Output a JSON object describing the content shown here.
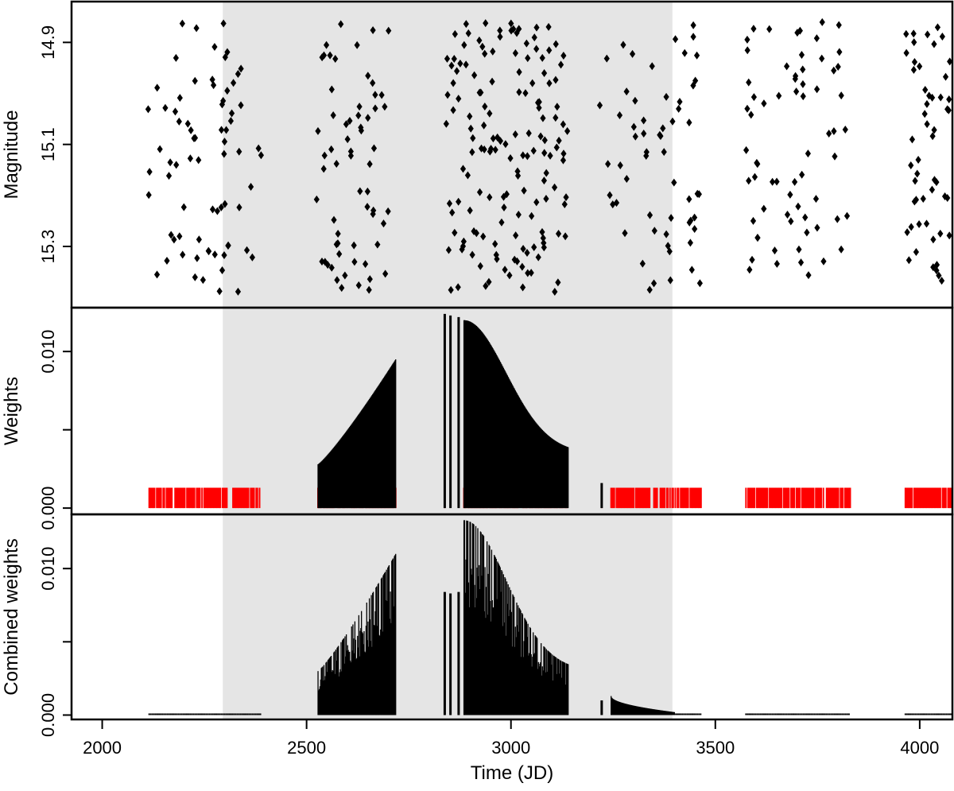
{
  "chart_data": {
    "type": "scatter",
    "x_axis": {
      "label": "Time (JD)",
      "range": [
        1925,
        4080
      ],
      "ticks": [
        2000,
        2500,
        3000,
        3500,
        4000
      ],
      "tick_labels": [
        "2000",
        "2500",
        "3000",
        "3500",
        "4000"
      ]
    },
    "highlight_band": {
      "x_range": [
        2295,
        3395
      ],
      "color": "#e5e5e5"
    },
    "colors": {
      "points": "#000000",
      "weights": "#000000",
      "observation_marks": "#ff0000",
      "band": "#e5e5e5"
    },
    "panels": [
      {
        "id": "magnitude",
        "ylabel": "Magnitude",
        "y_reversed": true,
        "ylim": [
          14.82,
          15.42
        ],
        "yticks": [
          14.9,
          15.1,
          15.3
        ],
        "ytick_labels": [
          "14.9",
          "15.1",
          "15.3"
        ],
        "marker": "diamond",
        "seasons": [
          {
            "x_range": [
              2110,
              2390
            ],
            "count": 72
          },
          {
            "x_range": [
              2520,
              2705
            ],
            "count": 62
          },
          {
            "x_range": [
              2840,
              3140
            ],
            "count": 150
          },
          {
            "x_range": [
              3215,
              3465
            ],
            "count": 58
          },
          {
            "x_range": [
              3575,
              3830
            ],
            "count": 66
          },
          {
            "x_range": [
              3965,
              4080
            ],
            "count": 55
          }
        ]
      },
      {
        "id": "weights",
        "ylabel": "Weights",
        "ylim": [
          -0.0004,
          0.0128
        ],
        "yticks": [
          0.0,
          0.005,
          0.01
        ],
        "ytick_labels": [
          "0.000",
          "",
          "0.010"
        ],
        "black_segments": [
          {
            "x_range": [
              2528,
              2718
            ],
            "y_start": 0.0028,
            "y_end": 0.0095,
            "shape": "rising"
          },
          {
            "x_range": [
              2885,
              3140
            ],
            "y_start": 0.012,
            "y_end": 0.0035,
            "shape": "gaussian-fall"
          }
        ],
        "isolated_lines": [
          {
            "x": 2838,
            "y": 0.0124
          },
          {
            "x": 2852,
            "y": 0.0123
          },
          {
            "x": 2872,
            "y": 0.0122
          },
          {
            "x": 3222,
            "y": 0.0016
          }
        ],
        "red_marks_height": 0.0013,
        "red_mark_ranges": [
          [
            2115,
            2305
          ],
          [
            2320,
            2385
          ],
          [
            2528,
            2718
          ],
          [
            2838,
            2838
          ],
          [
            2885,
            3140
          ],
          [
            3222,
            3222
          ],
          [
            3245,
            3465
          ],
          [
            3575,
            3830
          ],
          [
            3965,
            4080
          ]
        ]
      },
      {
        "id": "combined",
        "ylabel": "Combined weights",
        "ylim": [
          -0.0003,
          0.0137
        ],
        "yticks": [
          0.0,
          0.005,
          0.01
        ],
        "ytick_labels": [
          "0.000",
          "",
          "0.010"
        ],
        "black_segments": [
          {
            "x_range": [
              2528,
              2718
            ],
            "y_start": 0.003,
            "y_end": 0.011,
            "shape": "rising"
          },
          {
            "x_range": [
              2885,
              3140
            ],
            "y_start": 0.0133,
            "y_end": 0.003,
            "shape": "gaussian-fall"
          },
          {
            "x_range": [
              3245,
              3400
            ],
            "y_start": 0.0013,
            "y_end": 0.0002,
            "shape": "falling"
          }
        ],
        "isolated_lines": [
          {
            "x": 2838,
            "y": 0.0084
          },
          {
            "x": 2852,
            "y": 0.0083
          },
          {
            "x": 2872,
            "y": 0.0084
          },
          {
            "x": 3222,
            "y": 0.001
          }
        ],
        "baseline_dots": [
          [
            2115,
            2390
          ],
          [
            3400,
            3465
          ],
          [
            3575,
            3830
          ],
          [
            3965,
            4080
          ]
        ]
      }
    ]
  }
}
